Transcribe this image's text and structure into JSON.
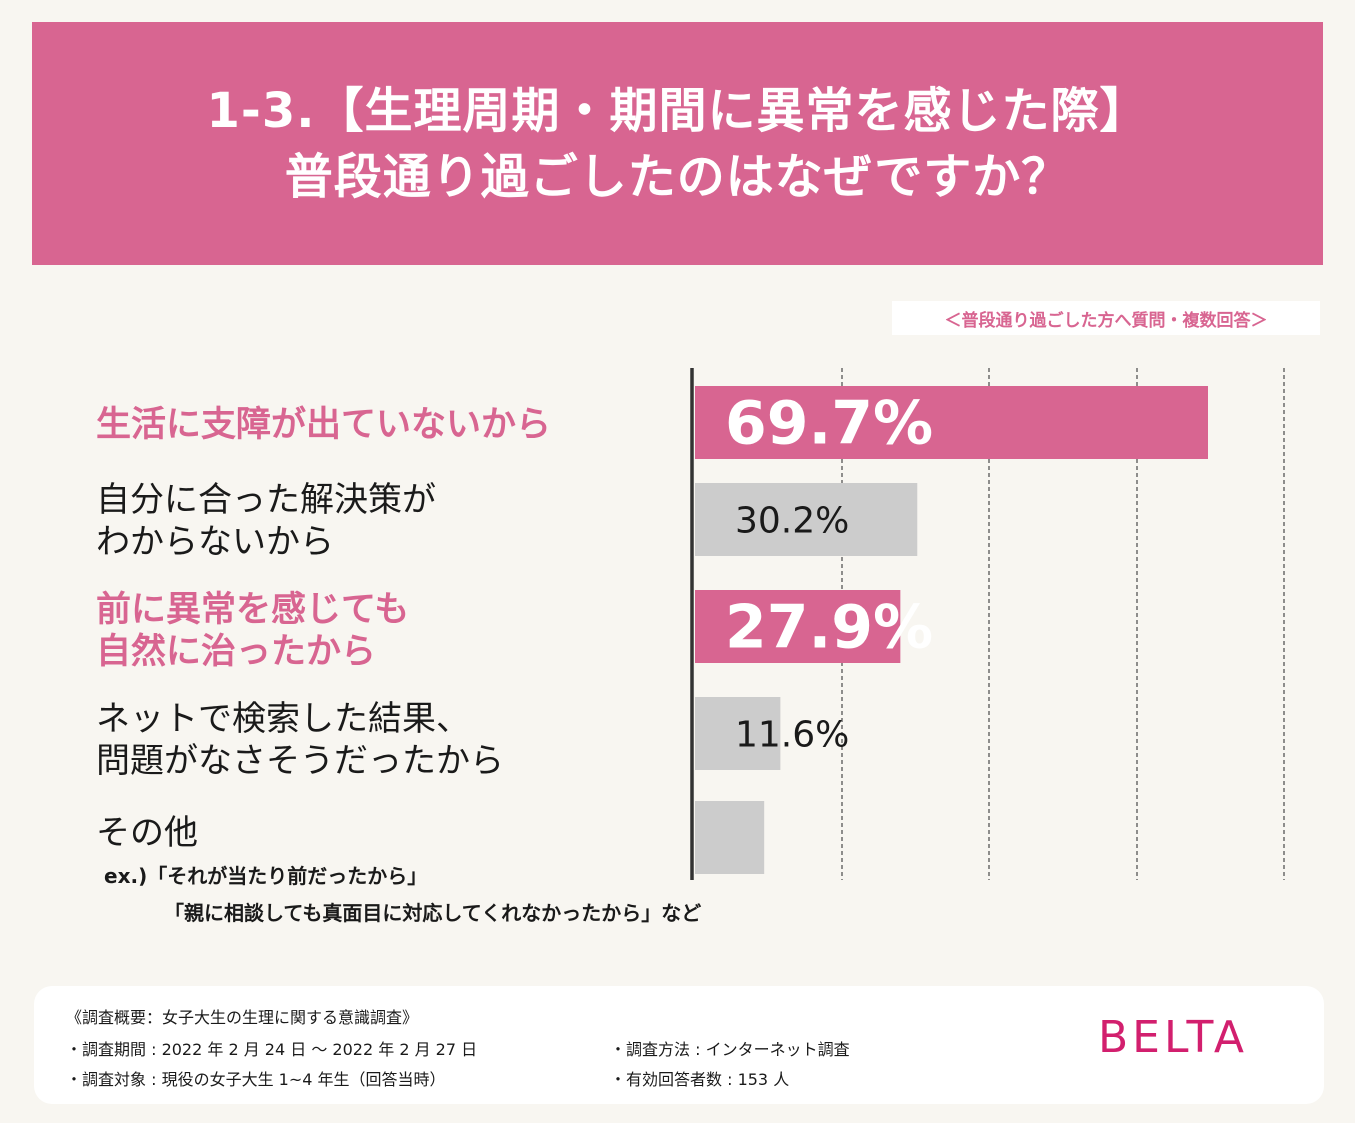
{
  "header": {
    "title_line1": "1-3.【生理周期・期間に異常を感じた際】",
    "title_line2": "普段通り過ごしたのはなぜですか？"
  },
  "note": "＜普段通り過ごした方へ質問・複数回答＞",
  "colors": {
    "accent": "#d86591",
    "gray_bar": "#cccccc",
    "brand": "#d21f6e"
  },
  "chart_data": {
    "type": "bar",
    "orientation": "horizontal",
    "title": "普段通り過ごしたのはなぜですか？",
    "unit": "%",
    "xlim": [
      0,
      100
    ],
    "grid": "dashed vertical lines",
    "categories": [
      "生活に支障が出ていないから",
      "自分に合った解決策がわからないから",
      "前に異常を感じても自然に治ったから",
      "ネットで検索した結果、問題がなさそうだったから",
      "その他"
    ],
    "values": [
      69.7,
      30.2,
      27.9,
      11.6,
      9.4
    ],
    "data_labels": [
      "69.7%",
      "30.2%",
      "27.9%",
      "11.6%",
      ""
    ],
    "highlighted": [
      true,
      false,
      true,
      false,
      false
    ]
  },
  "labels": {
    "cat1_line1": "生活に支障が出ていないから",
    "cat2_line1": "自分に合った解決策が",
    "cat2_line2": "わからないから",
    "cat3_line1": "前に異常を感じても",
    "cat3_line2": "自然に治ったから",
    "cat4_line1": "ネットで検索した結果、",
    "cat4_line2": "問題がなさそうだったから",
    "cat5_line1": "その他",
    "example_line1": "ex.)「それが当たり前だったから」",
    "example_line2": "「親に相談しても真面目に対応してくれなかったから」など"
  },
  "footer": {
    "heading": "《調査概要：女子大生の生理に関する意識調査》",
    "period": "・調査期間 : 2022 年 2 月 24 日 ～ 2022 年 2 月 27 日",
    "target": "・調査対象 : 現役の女子大生 1~4 年生（回答当時）",
    "method": "・調査方法 : インターネット調査",
    "respondents": "・有効回答者数 : 153 人",
    "brand": "BELTA"
  }
}
